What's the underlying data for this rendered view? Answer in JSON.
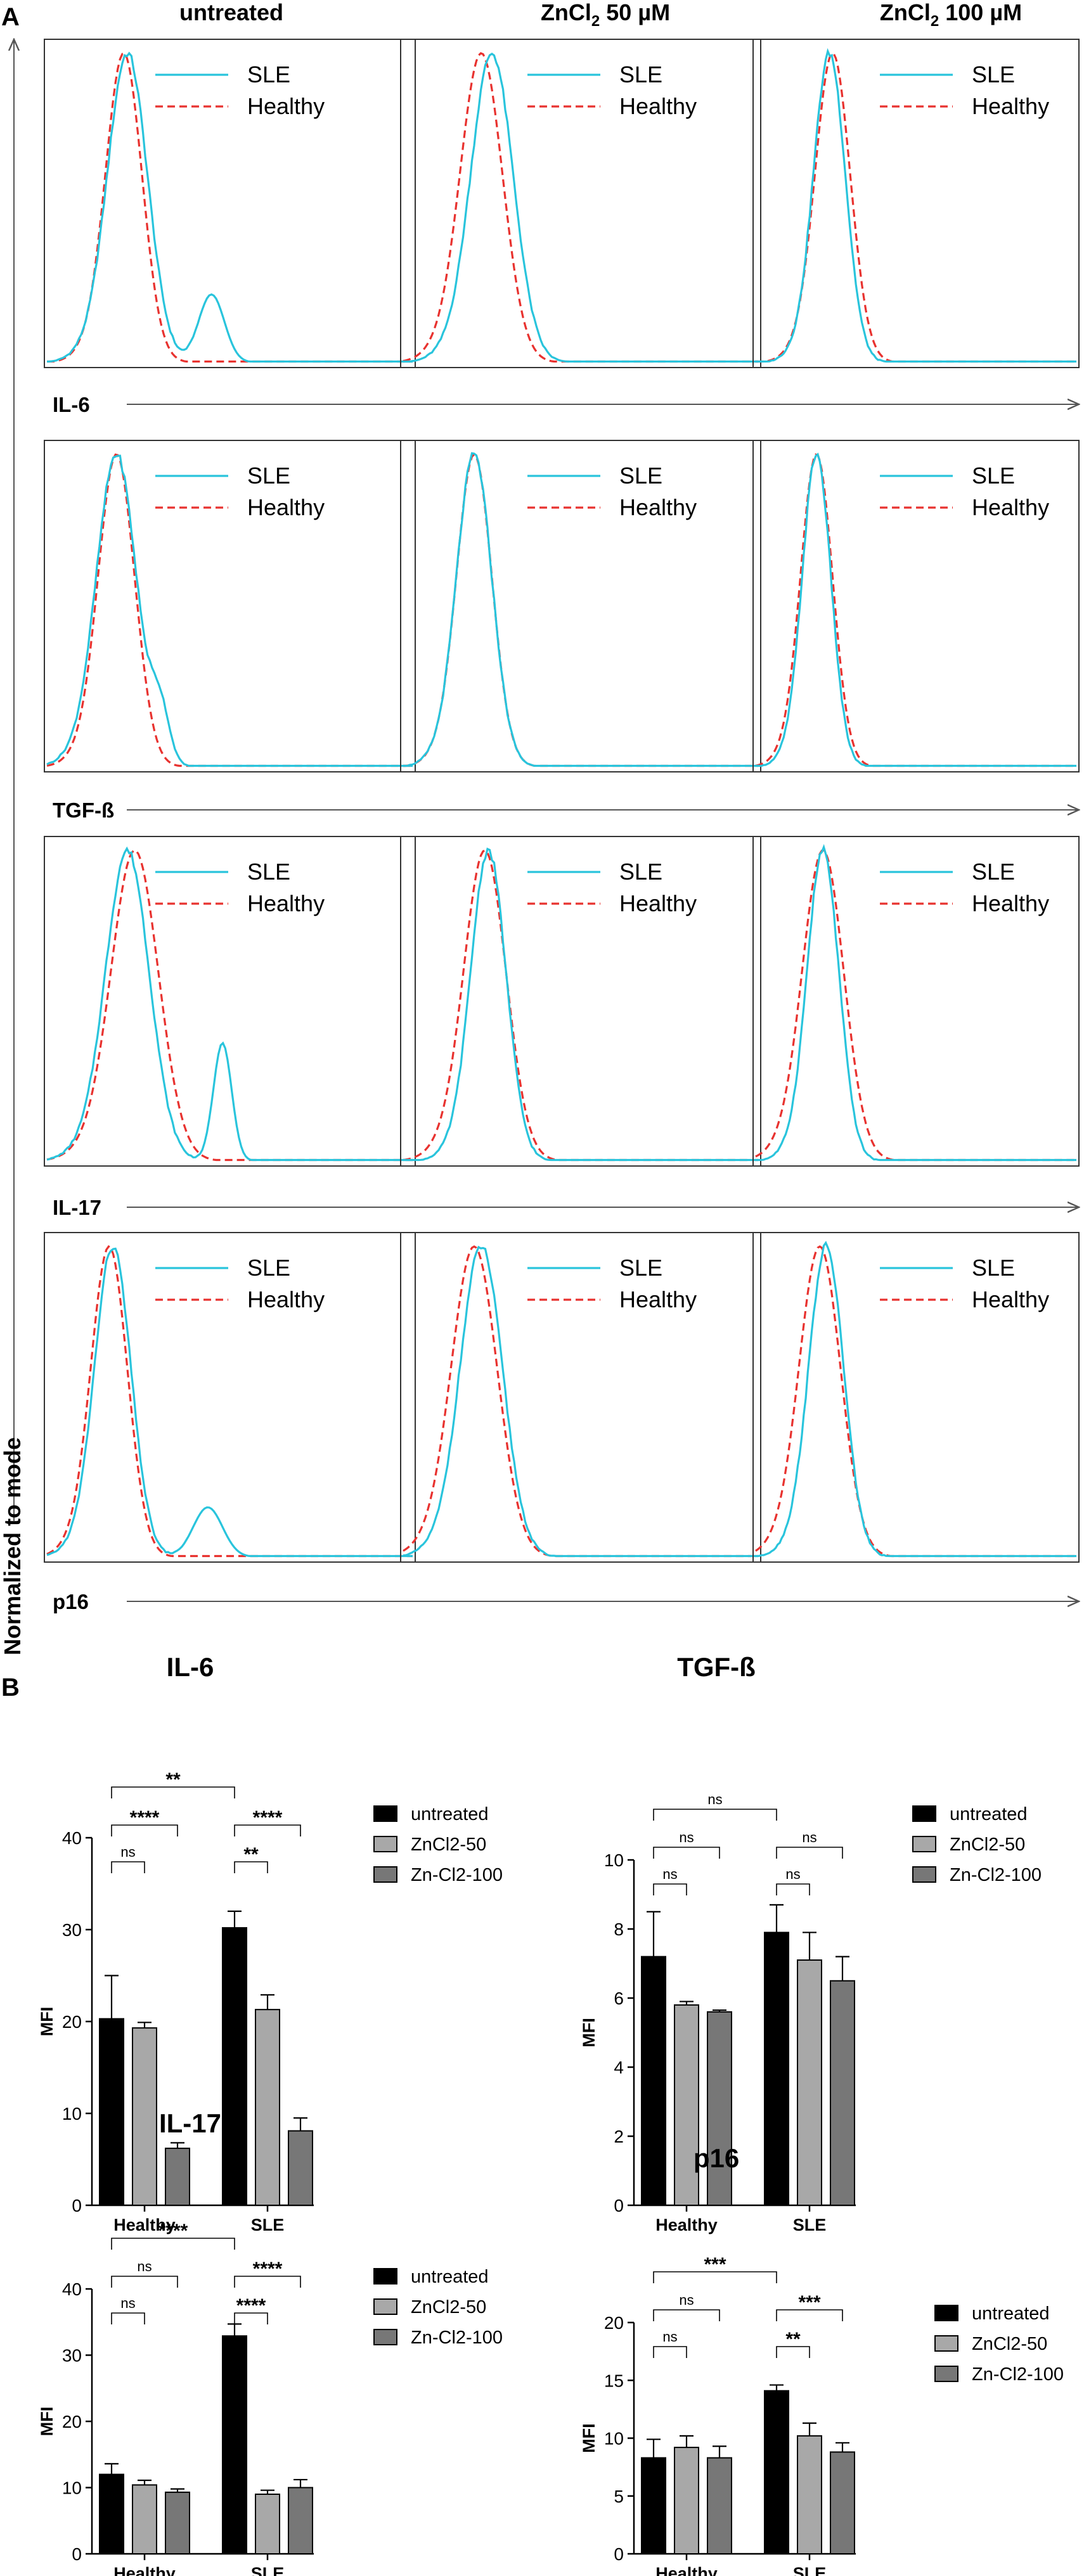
{
  "figure": {
    "panel_a_label": "A",
    "panel_b_label": "B",
    "y_axis_label": "Normalized to mode",
    "column_headers": [
      {
        "pre": "untreated",
        "sub": "",
        "post": ""
      },
      {
        "pre": "ZnCl",
        "sub": "2",
        "post": " 50 µM"
      },
      {
        "pre": "ZnCl",
        "sub": "2",
        "post": " 100 µM"
      }
    ],
    "row_labels": [
      "IL-6",
      "TGF-ß",
      "IL-17",
      "p16"
    ],
    "histogram_legend": [
      "SLE",
      "Healthy"
    ],
    "colors": {
      "sle": "#29c4dc",
      "healthy": "#e8322f",
      "untreated": "#000000",
      "zn50": "#a8a8a8",
      "zn100": "#777777"
    }
  },
  "chart_data": [
    {
      "type": "histogram-overlay",
      "rows": [
        "IL-6",
        "TGF-ß",
        "IL-17",
        "p16"
      ],
      "columns": [
        "untreated",
        "ZnCl2 50 µM",
        "ZnCl2 100 µM"
      ],
      "series": [
        {
          "name": "SLE"
        },
        {
          "name": "Healthy"
        }
      ],
      "panels": [
        [
          {
            "sle": {
              "peak": 0.22,
              "width": 0.055,
              "shoulder": {
                "pos": 0.45,
                "h": 0.22,
                "w": 0.035
              }
            },
            "healthy": {
              "peak": 0.21,
              "width": 0.05
            }
          },
          {
            "sle": {
              "peak": 0.25,
              "width": 0.06
            },
            "healthy": {
              "peak": 0.22,
              "width": 0.06
            }
          },
          {
            "sle": {
              "peak": 0.23,
              "width": 0.05
            },
            "healthy": {
              "peak": 0.24,
              "width": 0.055
            }
          }
        ],
        [
          {
            "sle": {
              "peak": 0.19,
              "width": 0.055,
              "shoulder": {
                "pos": 0.31,
                "h": 0.16,
                "w": 0.025
              }
            },
            "healthy": {
              "peak": 0.19,
              "width": 0.05
            }
          },
          {
            "sle": {
              "peak": 0.2,
              "width": 0.05
            },
            "healthy": {
              "peak": 0.2,
              "width": 0.05
            }
          },
          {
            "sle": {
              "peak": 0.19,
              "width": 0.045
            },
            "healthy": {
              "peak": 0.19,
              "width": 0.05
            }
          }
        ],
        [
          {
            "sle": {
              "peak": 0.22,
              "width": 0.06,
              "shoulder": {
                "pos": 0.48,
                "h": 0.38,
                "w": 0.025
              }
            },
            "healthy": {
              "peak": 0.24,
              "width": 0.065
            }
          },
          {
            "sle": {
              "peak": 0.24,
              "width": 0.05
            },
            "healthy": {
              "peak": 0.23,
              "width": 0.06
            }
          },
          {
            "sle": {
              "peak": 0.21,
              "width": 0.05
            },
            "healthy": {
              "peak": 0.21,
              "width": 0.065
            }
          }
        ],
        [
          {
            "sle": {
              "peak": 0.18,
              "width": 0.05,
              "shoulder": {
                "pos": 0.44,
                "h": 0.16,
                "w": 0.04
              }
            },
            "healthy": {
              "peak": 0.17,
              "width": 0.05
            }
          },
          {
            "sle": {
              "peak": 0.22,
              "width": 0.06
            },
            "healthy": {
              "peak": 0.2,
              "width": 0.065
            }
          },
          {
            "sle": {
              "peak": 0.22,
              "width": 0.055
            },
            "healthy": {
              "peak": 0.2,
              "width": 0.065
            }
          }
        ]
      ]
    },
    {
      "type": "bar",
      "title": "IL-6",
      "ylabel": "MFI",
      "categories": [
        "Healthy",
        "SLE"
      ],
      "ylim": [
        0,
        40
      ],
      "yticks": [
        0,
        10,
        20,
        30,
        40
      ],
      "series": [
        {
          "name": "untreated",
          "values": [
            20.3,
            30.2
          ],
          "errors": [
            4.7,
            1.8
          ]
        },
        {
          "name": "ZnCl2-50",
          "values": [
            19.3,
            21.3
          ],
          "errors": [
            0.6,
            1.6
          ]
        },
        {
          "name": "Zn-Cl2-100",
          "values": [
            6.2,
            8.1
          ],
          "errors": [
            0.6,
            1.4
          ]
        }
      ],
      "significance": [
        {
          "label": "ns",
          "left": [
            0,
            0
          ],
          "right": [
            0,
            1
          ]
        },
        {
          "label": "****",
          "left": [
            0,
            0
          ],
          "right": [
            0,
            2
          ]
        },
        {
          "label": "**",
          "left": [
            0,
            0
          ],
          "right": [
            1,
            0
          ]
        },
        {
          "label": "**",
          "left": [
            1,
            0
          ],
          "right": [
            1,
            1
          ]
        },
        {
          "label": "****",
          "left": [
            1,
            0
          ],
          "right": [
            1,
            2
          ]
        }
      ]
    },
    {
      "type": "bar",
      "title": "TGF-ß",
      "ylabel": "MFI",
      "categories": [
        "Healthy",
        "SLE"
      ],
      "ylim": [
        0,
        10
      ],
      "yticks": [
        0,
        2,
        4,
        6,
        8,
        10
      ],
      "series": [
        {
          "name": "untreated",
          "values": [
            7.2,
            7.9
          ],
          "errors": [
            1.3,
            0.8
          ]
        },
        {
          "name": "ZnCl2-50",
          "values": [
            5.8,
            7.1
          ],
          "errors": [
            0.1,
            0.8
          ]
        },
        {
          "name": "Zn-Cl2-100",
          "values": [
            5.6,
            6.5
          ],
          "errors": [
            0.05,
            0.7
          ]
        }
      ],
      "significance": [
        {
          "label": "ns",
          "left": [
            0,
            0
          ],
          "right": [
            0,
            1
          ]
        },
        {
          "label": "ns",
          "left": [
            0,
            0
          ],
          "right": [
            0,
            2
          ]
        },
        {
          "label": "ns",
          "left": [
            0,
            0
          ],
          "right": [
            1,
            0
          ]
        },
        {
          "label": "ns",
          "left": [
            1,
            0
          ],
          "right": [
            1,
            1
          ]
        },
        {
          "label": "ns",
          "left": [
            1,
            0
          ],
          "right": [
            1,
            2
          ]
        }
      ]
    },
    {
      "type": "bar",
      "title": "IL-17",
      "ylabel": "MFI",
      "categories": [
        "Healthy",
        "SLE"
      ],
      "ylim": [
        0,
        40
      ],
      "yticks": [
        0,
        10,
        20,
        30,
        40
      ],
      "series": [
        {
          "name": "untreated",
          "values": [
            12.0,
            32.9
          ],
          "errors": [
            1.6,
            1.8
          ]
        },
        {
          "name": "ZnCl2-50",
          "values": [
            10.4,
            9.0
          ],
          "errors": [
            0.7,
            0.6
          ]
        },
        {
          "name": "Zn-Cl2-100",
          "values": [
            9.3,
            10.0
          ],
          "errors": [
            0.5,
            1.2
          ]
        }
      ],
      "significance": [
        {
          "label": "ns",
          "left": [
            0,
            0
          ],
          "right": [
            0,
            1
          ]
        },
        {
          "label": "ns",
          "left": [
            0,
            0
          ],
          "right": [
            0,
            2
          ]
        },
        {
          "label": "****",
          "left": [
            0,
            0
          ],
          "right": [
            1,
            0
          ]
        },
        {
          "label": "****",
          "left": [
            1,
            0
          ],
          "right": [
            1,
            1
          ]
        },
        {
          "label": "****",
          "left": [
            1,
            0
          ],
          "right": [
            1,
            2
          ]
        }
      ]
    },
    {
      "type": "bar",
      "title": "p16",
      "ylabel": "MFI",
      "categories": [
        "Healthy",
        "SLE"
      ],
      "ylim": [
        0,
        20
      ],
      "yticks": [
        0,
        5,
        10,
        15,
        20
      ],
      "series": [
        {
          "name": "untreated",
          "values": [
            8.3,
            14.1
          ],
          "errors": [
            1.6,
            0.5
          ]
        },
        {
          "name": "ZnCl2-50",
          "values": [
            9.2,
            10.2
          ],
          "errors": [
            1.0,
            1.1
          ]
        },
        {
          "name": "Zn-Cl2-100",
          "values": [
            8.3,
            8.8
          ],
          "errors": [
            1.0,
            0.8
          ]
        }
      ],
      "significance": [
        {
          "label": "ns",
          "left": [
            0,
            0
          ],
          "right": [
            0,
            1
          ]
        },
        {
          "label": "ns",
          "left": [
            0,
            0
          ],
          "right": [
            0,
            2
          ]
        },
        {
          "label": "***",
          "left": [
            0,
            0
          ],
          "right": [
            1,
            0
          ]
        },
        {
          "label": "**",
          "left": [
            1,
            0
          ],
          "right": [
            1,
            1
          ]
        },
        {
          "label": "***",
          "left": [
            1,
            0
          ],
          "right": [
            1,
            2
          ]
        }
      ]
    }
  ]
}
